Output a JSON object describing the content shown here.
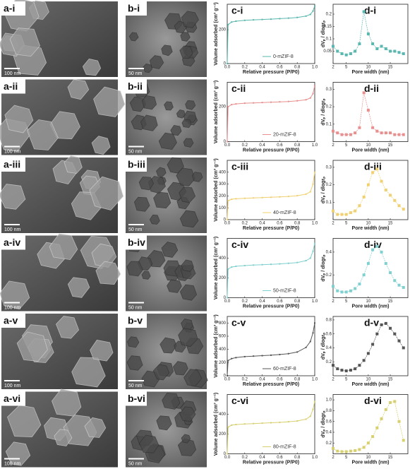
{
  "panels": [
    {
      "label": "a-i",
      "scale_bar": "100 nm"
    },
    {
      "label": "a-ii",
      "scale_bar": "100 nm"
    },
    {
      "label": "a-iii",
      "scale_bar": "100 nm"
    },
    {
      "label": "a-iv",
      "scale_bar": "100 nm"
    },
    {
      "label": "a-v",
      "scale_bar": "100 nm"
    },
    {
      "label": "a-vi",
      "scale_bar": "100 nm"
    },
    {
      "label": "b-i",
      "scale_bar": "50 nm"
    },
    {
      "label": "b-ii",
      "scale_bar": "50 nm"
    },
    {
      "label": "b-iii",
      "scale_bar": "50 nm"
    },
    {
      "label": "b-iv",
      "scale_bar": "50 nm"
    },
    {
      "label": "b-v",
      "scale_bar": "50 nm"
    },
    {
      "label": "b-vi",
      "scale_bar": "50 nm"
    }
  ],
  "chart_data": [
    {
      "type": "line",
      "title": "c-i",
      "x_label": "Relative pressure (P/P0)",
      "y_label": "Volume adsorbed (cm³ g⁻¹)",
      "x": [
        0,
        0.01,
        0.05,
        0.1,
        0.2,
        0.3,
        0.4,
        0.5,
        0.6,
        0.7,
        0.8,
        0.9,
        0.95,
        0.98,
        1
      ],
      "series": [
        {
          "name": "0-mZIF-8",
          "color": "#5bb8b0",
          "values": [
            0,
            230,
            245,
            250,
            255,
            258,
            260,
            262,
            265,
            268,
            272,
            280,
            290,
            310,
            340
          ]
        }
      ],
      "xlim": [
        0,
        1
      ],
      "xticks": [
        {
          "value": 0,
          "label": "0.0"
        },
        0.2,
        0.4,
        0.6,
        0.8,
        {
          "value": 1,
          "label": "1.0"
        }
      ],
      "ylim": [
        0,
        350
      ],
      "yticks": [
        0,
        200
      ]
    },
    {
      "type": "line",
      "title": "c-ii",
      "x_label": "Relative pressure (P/P0)",
      "y_label": "Volume adsorbed (cm³ g⁻¹)",
      "x": [
        0,
        0.01,
        0.05,
        0.1,
        0.2,
        0.3,
        0.4,
        0.5,
        0.6,
        0.7,
        0.8,
        0.9,
        0.95,
        0.98,
        1
      ],
      "series": [
        {
          "name": "20-mZIF-8",
          "color": "#e89090",
          "values": [
            0,
            200,
            212,
            216,
            220,
            222,
            224,
            226,
            228,
            230,
            234,
            240,
            250,
            275,
            320
          ]
        }
      ],
      "xlim": [
        0,
        1
      ],
      "xticks": [
        {
          "value": 0,
          "label": "0.0"
        },
        0.2,
        0.4,
        0.6,
        0.8,
        {
          "value": 1,
          "label": "1.0"
        }
      ],
      "ylim": [
        0,
        340
      ],
      "yticks": [
        0,
        200
      ]
    },
    {
      "type": "line",
      "title": "c-iii",
      "x_label": "Relative pressure (P/P0)",
      "y_label": "Volume adsorbed (cm³ g⁻¹)",
      "x": [
        0,
        0.01,
        0.05,
        0.1,
        0.2,
        0.3,
        0.4,
        0.5,
        0.6,
        0.7,
        0.8,
        0.9,
        0.95,
        0.98,
        1
      ],
      "series": [
        {
          "name": "40-mZIF-8",
          "color": "#f0d070",
          "values": [
            0,
            160,
            172,
            176,
            180,
            183,
            186,
            189,
            192,
            196,
            202,
            215,
            235,
            300,
            400
          ]
        }
      ],
      "xlim": [
        0,
        1
      ],
      "xticks": [
        {
          "value": 0,
          "label": "0.0"
        },
        0.2,
        0.4,
        0.6,
        0.8,
        {
          "value": 1,
          "label": "1.0"
        }
      ],
      "ylim": [
        0,
        500
      ],
      "yticks": [
        0,
        100,
        200,
        300,
        400
      ]
    },
    {
      "type": "line",
      "title": "c-iv",
      "x_label": "Relative pressure (P/P0)",
      "y_label": "Volume adsorbed (cm³ g⁻¹)",
      "x": [
        0,
        0.01,
        0.05,
        0.1,
        0.2,
        0.3,
        0.4,
        0.5,
        0.6,
        0.7,
        0.8,
        0.9,
        0.95,
        0.98,
        1
      ],
      "series": [
        {
          "name": "50-mZIF-8",
          "color": "#80d0d0",
          "values": [
            0,
            290,
            310,
            318,
            325,
            330,
            334,
            338,
            342,
            348,
            356,
            375,
            400,
            470,
            550
          ]
        }
      ],
      "xlim": [
        0,
        1
      ],
      "xticks": [
        {
          "value": 0,
          "label": "0.0"
        },
        0.2,
        0.4,
        0.6,
        0.8,
        {
          "value": 1,
          "label": "1.0"
        }
      ],
      "ylim": [
        0,
        600
      ],
      "yticks": [
        0,
        200,
        400
      ]
    },
    {
      "type": "line",
      "title": "c-v",
      "x_label": "Relative pressure (P/P0)",
      "y_label": "Volume adsorbed (cm³ g⁻¹)",
      "x": [
        0,
        0.01,
        0.05,
        0.1,
        0.2,
        0.3,
        0.4,
        0.5,
        0.6,
        0.7,
        0.8,
        0.9,
        0.95,
        0.98,
        1
      ],
      "series": [
        {
          "name": "60-mZIF-8",
          "color": "#555555",
          "values": [
            0,
            230,
            260,
            275,
            290,
            298,
            305,
            312,
            322,
            335,
            360,
            430,
            520,
            650,
            800
          ]
        }
      ],
      "xlim": [
        0,
        1
      ],
      "xticks": [
        {
          "value": 0,
          "label": "0.0"
        },
        0.2,
        0.4,
        0.6,
        0.8,
        {
          "value": 1,
          "label": "1.0"
        }
      ],
      "ylim": [
        0,
        900
      ],
      "yticks": [
        0,
        200,
        400,
        600,
        800
      ]
    },
    {
      "type": "line",
      "title": "c-vi",
      "x_label": "Relative pressure (P/P0)",
      "y_label": "Volume adsorbed (cm³ g⁻¹)",
      "x": [
        0,
        0.01,
        0.05,
        0.1,
        0.2,
        0.3,
        0.4,
        0.5,
        0.6,
        0.7,
        0.8,
        0.9,
        0.95,
        0.98,
        1
      ],
      "series": [
        {
          "name": "80-mZIF-8",
          "color": "#d8d070",
          "values": [
            0,
            270,
            290,
            296,
            302,
            306,
            310,
            314,
            318,
            324,
            332,
            350,
            380,
            450,
            530
          ]
        }
      ],
      "xlim": [
        0,
        1
      ],
      "xticks": [
        {
          "value": 0,
          "label": "0.0"
        },
        0.2,
        0.4,
        0.6,
        0.8,
        {
          "value": 1,
          "label": "1.0"
        }
      ],
      "ylim": [
        0,
        600
      ],
      "yticks": [
        0,
        200,
        400
      ]
    },
    {
      "type": "line",
      "title": "d-i",
      "x_label": "Pore width (nm)",
      "y_label": "dVₚ / dlogrₚ",
      "x": [
        2,
        3,
        4,
        5,
        6,
        7,
        8,
        9,
        10,
        11,
        12,
        13,
        14,
        15,
        16,
        17,
        18
      ],
      "series": [
        {
          "color": "#5bb8b0",
          "values": [
            0.07,
            0.05,
            0.04,
            0.035,
            0.04,
            0.05,
            0.08,
            0.21,
            0.12,
            0.08,
            0.06,
            0.07,
            0.06,
            0.05,
            0.05,
            0.045,
            0.04
          ]
        }
      ],
      "xlim": [
        2,
        19
      ],
      "xticks": [
        2,
        5,
        10,
        15
      ],
      "ylim": [
        0,
        0.24
      ],
      "yticks": [
        0.05,
        0.1,
        0.15,
        0.2
      ]
    },
    {
      "type": "line",
      "title": "d-ii",
      "x_label": "Pore width (nm)",
      "y_label": "dVₚ / dlogrₚ",
      "x": [
        2,
        3,
        4,
        5,
        6,
        7,
        8,
        9,
        10,
        11,
        12,
        13,
        14,
        15,
        16,
        17,
        18
      ],
      "series": [
        {
          "color": "#e89090",
          "values": [
            0.06,
            0.05,
            0.04,
            0.04,
            0.04,
            0.05,
            0.08,
            0.28,
            0.18,
            0.08,
            0.06,
            0.05,
            0.05,
            0.05,
            0.04,
            0.04,
            0.04
          ]
        }
      ],
      "xlim": [
        2,
        19
      ],
      "xticks": [
        2,
        5,
        10,
        15
      ],
      "ylim": [
        0,
        0.34
      ],
      "yticks": [
        0.1,
        0.2,
        0.3
      ]
    },
    {
      "type": "line",
      "title": "d-iii",
      "x_label": "Pore width (nm)",
      "y_label": "dVₚ / dlogrₚ",
      "x": [
        2,
        3,
        4,
        5,
        6,
        7,
        8,
        9,
        10,
        11,
        12,
        13,
        14,
        15,
        16,
        17,
        18
      ],
      "series": [
        {
          "color": "#f0d070",
          "values": [
            0.05,
            0.03,
            0.03,
            0.03,
            0.04,
            0.05,
            0.08,
            0.13,
            0.2,
            0.27,
            0.29,
            0.22,
            0.17,
            0.14,
            0.11,
            0.08,
            0.06
          ]
        }
      ],
      "xlim": [
        2,
        19
      ],
      "xticks": [
        2,
        5,
        10,
        15
      ],
      "ylim": [
        0,
        0.34
      ],
      "yticks": [
        0.1,
        0.2,
        0.3
      ]
    },
    {
      "type": "line",
      "title": "d-iv",
      "x_label": "Pore width (nm)",
      "y_label": "dVₚ / dlogrₚ",
      "x": [
        2,
        3,
        4,
        5,
        6,
        7,
        8,
        9,
        10,
        11,
        12,
        13,
        14,
        15,
        16,
        17,
        18
      ],
      "series": [
        {
          "color": "#80d0d0",
          "values": [
            0.1,
            0.06,
            0.05,
            0.05,
            0.06,
            0.08,
            0.12,
            0.2,
            0.3,
            0.42,
            0.45,
            0.4,
            0.3,
            0.22,
            0.15,
            0.11,
            0.09
          ]
        }
      ],
      "xlim": [
        2,
        19
      ],
      "xticks": [
        2,
        5,
        10,
        15
      ],
      "ylim": [
        0,
        0.52
      ],
      "yticks": [
        0.2,
        0.4
      ]
    },
    {
      "type": "line",
      "title": "d-v",
      "x_label": "Pore width (nm)",
      "y_label": "dVₚ / dlogrₚ",
      "x": [
        2,
        3,
        4,
        5,
        6,
        7,
        8,
        9,
        10,
        11,
        12,
        13,
        14,
        15,
        16,
        17,
        18
      ],
      "series": [
        {
          "color": "#555555",
          "values": [
            0.15,
            0.1,
            0.08,
            0.07,
            0.08,
            0.1,
            0.15,
            0.22,
            0.32,
            0.45,
            0.6,
            0.73,
            0.75,
            0.68,
            0.6,
            0.5,
            0.4
          ]
        }
      ],
      "xlim": [
        2,
        19
      ],
      "xticks": [
        2,
        5,
        10,
        15
      ],
      "ylim": [
        0,
        0.85
      ],
      "yticks": [
        0.2,
        0.4,
        0.6,
        0.8
      ]
    },
    {
      "type": "line",
      "title": "d-vi",
      "x_label": "Pore width (nm)",
      "y_label": "dVₚ / dlogrₚ",
      "x": [
        2,
        3,
        4,
        5,
        6,
        7,
        8,
        9,
        10,
        11,
        12,
        13,
        14,
        15,
        16,
        17,
        18
      ],
      "series": [
        {
          "color": "#d8d070",
          "values": [
            0.1,
            0.05,
            0.04,
            0.04,
            0.05,
            0.06,
            0.08,
            0.12,
            0.2,
            0.32,
            0.48,
            0.65,
            0.82,
            0.95,
            0.97,
            0.6,
            0.25
          ]
        }
      ],
      "xlim": [
        2,
        19
      ],
      "xticks": [
        2,
        5,
        10,
        15
      ],
      "ylim": [
        0,
        1.1
      ],
      "yticks": [
        0.2,
        0.4,
        0.6,
        0.8,
        {
          "value": 1,
          "label": "1.0"
        }
      ]
    }
  ]
}
